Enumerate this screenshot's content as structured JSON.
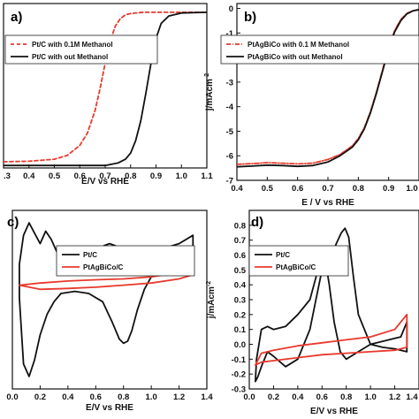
{
  "chart_data": [
    {
      "id": "a",
      "type": "line",
      "panel_label": "a)",
      "xlabel": "E/V vs RHE",
      "ylabel": "",
      "xlim": [
        0.3,
        1.1
      ],
      "ylim": [
        -6.3,
        0.3
      ],
      "xticks": [
        0.3,
        0.4,
        0.5,
        0.6,
        0.7,
        0.8,
        0.9,
        1.0,
        1.1
      ],
      "xtick_labels": [
        ".3",
        "0.4",
        "0.5",
        "0.6",
        "0.7",
        "0.8",
        "0.9",
        "1.0",
        "1.1"
      ],
      "yticks": [],
      "ytick_labels": [],
      "legend_position": "upper-left",
      "series": [
        {
          "name": "Pt/C with 0.1M Methanol",
          "color": "#e8392c",
          "dash": "4,3",
          "x": [
            0.3,
            0.4,
            0.5,
            0.55,
            0.6,
            0.63,
            0.66,
            0.68,
            0.7,
            0.72,
            0.74,
            0.76,
            0.78,
            0.8,
            0.85,
            0.9,
            1.0,
            1.1
          ],
          "y": [
            -6.05,
            -6.03,
            -5.95,
            -5.8,
            -5.4,
            -4.9,
            -4.0,
            -3.1,
            -2.1,
            -1.2,
            -0.6,
            -0.3,
            -0.15,
            -0.1,
            -0.05,
            -0.05,
            -0.05,
            -0.05
          ]
        },
        {
          "name": "Pt/C with out Methanol",
          "color": "#111111",
          "dash": "",
          "x": [
            0.3,
            0.5,
            0.7,
            0.75,
            0.78,
            0.8,
            0.82,
            0.84,
            0.86,
            0.88,
            0.9,
            0.92,
            0.95,
            1.0,
            1.1
          ],
          "y": [
            -6.2,
            -6.2,
            -6.2,
            -6.1,
            -5.95,
            -5.7,
            -5.2,
            -4.4,
            -3.3,
            -2.1,
            -1.1,
            -0.5,
            -0.2,
            -0.08,
            -0.05
          ]
        }
      ]
    },
    {
      "id": "b",
      "type": "line",
      "panel_label": "b)",
      "xlabel": "E / V vs RHE",
      "ylabel": "j/mAcm-2",
      "xlim": [
        0.4,
        1.0
      ],
      "ylim": [
        -7,
        0.2
      ],
      "xticks": [
        0.4,
        0.5,
        0.6,
        0.7,
        0.8,
        0.9,
        1.0
      ],
      "xtick_labels": [
        "0.4",
        "0.5",
        "0.6",
        "0.7",
        "0.8",
        "0.9",
        "1.0"
      ],
      "yticks": [
        0,
        -1,
        -2,
        -3,
        -4,
        -5,
        -6,
        -7
      ],
      "ytick_labels": [
        "0",
        "-1",
        "-2",
        "-3",
        "-4",
        "-5",
        "-6",
        "-7"
      ],
      "legend_position": "upper-left",
      "series": [
        {
          "name": "PtAgBiCo with 0.1 M Methanol",
          "color": "#e8392c",
          "dash": "5,2,1,2",
          "x": [
            0.4,
            0.45,
            0.5,
            0.55,
            0.6,
            0.65,
            0.7,
            0.74,
            0.78,
            0.8,
            0.82,
            0.84,
            0.86,
            0.88,
            0.9,
            0.92,
            0.94,
            0.96,
            0.98,
            1.0
          ],
          "y": [
            -6.35,
            -6.32,
            -6.28,
            -6.3,
            -6.33,
            -6.3,
            -6.15,
            -5.95,
            -5.6,
            -5.3,
            -4.85,
            -4.2,
            -3.4,
            -2.5,
            -1.6,
            -0.9,
            -0.45,
            -0.2,
            -0.1,
            -0.05
          ]
        },
        {
          "name": "PtAgBiCo with out Methanol",
          "color": "#111111",
          "dash": "",
          "x": [
            0.4,
            0.45,
            0.5,
            0.55,
            0.6,
            0.65,
            0.7,
            0.74,
            0.78,
            0.8,
            0.82,
            0.84,
            0.86,
            0.88,
            0.9,
            0.92,
            0.94,
            0.96,
            0.98,
            1.0
          ],
          "y": [
            -6.45,
            -6.42,
            -6.38,
            -6.4,
            -6.43,
            -6.4,
            -6.25,
            -6.0,
            -5.65,
            -5.35,
            -4.9,
            -4.25,
            -3.45,
            -2.55,
            -1.65,
            -0.95,
            -0.5,
            -0.22,
            -0.1,
            -0.05
          ]
        }
      ]
    },
    {
      "id": "c",
      "type": "line",
      "panel_label": "c)",
      "xlabel": "E/V vs RHE",
      "ylabel": "",
      "xlim": [
        0.0,
        1.4
      ],
      "ylim": [
        -0.26,
        0.17
      ],
      "xticks": [
        0.0,
        0.2,
        0.4,
        0.6,
        0.8,
        1.0,
        1.2,
        1.4
      ],
      "xtick_labels": [
        "0.0",
        "0.2",
        "0.4",
        "0.6",
        "0.8",
        "1.0",
        "1.2",
        "1.4"
      ],
      "yticks": [],
      "ytick_labels": [],
      "legend_position": "upper-center",
      "series": [
        {
          "name": "Pt/C",
          "color": "#111111",
          "dash": "",
          "closed": true,
          "x": [
            0.05,
            0.08,
            0.12,
            0.16,
            0.2,
            0.24,
            0.28,
            0.32,
            0.38,
            0.45,
            0.52,
            0.58,
            0.62,
            0.66,
            0.7,
            0.74,
            0.8,
            0.9,
            1.0,
            1.1,
            1.2,
            1.3,
            1.3,
            1.25,
            1.2,
            1.1,
            1.0,
            0.95,
            0.9,
            0.86,
            0.83,
            0.8,
            0.77,
            0.72,
            0.65,
            0.55,
            0.45,
            0.35,
            0.3,
            0.25,
            0.2,
            0.16,
            0.12,
            0.08,
            0.05
          ],
          "y": [
            0.04,
            0.11,
            0.14,
            0.115,
            0.09,
            0.12,
            0.1,
            0.07,
            0.04,
            0.02,
            0.015,
            0.02,
            0.06,
            0.085,
            0.09,
            0.085,
            0.07,
            0.07,
            0.073,
            0.08,
            0.09,
            0.11,
            0.04,
            0.02,
            0.02,
            0.02,
            0.01,
            -0.02,
            -0.07,
            -0.12,
            -0.145,
            -0.15,
            -0.14,
            -0.1,
            -0.05,
            -0.03,
            -0.025,
            -0.03,
            -0.05,
            -0.08,
            -0.13,
            -0.19,
            -0.23,
            -0.2,
            -0.04
          ]
        },
        {
          "name": "PtAgBiCo/C",
          "color": "#e8392c",
          "dash": "",
          "closed": true,
          "x": [
            0.05,
            0.2,
            0.4,
            0.6,
            0.8,
            1.0,
            1.2,
            1.3,
            1.3,
            1.2,
            1.0,
            0.8,
            0.6,
            0.4,
            0.2,
            0.05
          ],
          "y": [
            -0.01,
            -0.005,
            0.0,
            0.003,
            0.005,
            0.01,
            0.02,
            0.035,
            0.015,
            0.005,
            -0.005,
            -0.01,
            -0.015,
            -0.018,
            -0.02,
            -0.01
          ]
        }
      ]
    },
    {
      "id": "d",
      "type": "line",
      "panel_label": "d)",
      "xlabel": "E/V vs RHE",
      "ylabel": "j/mAcm-2",
      "xlim": [
        0.0,
        1.4
      ],
      "ylim": [
        -0.3,
        0.9
      ],
      "xticks": [
        0.0,
        0.2,
        0.4,
        0.6,
        0.8,
        1.0,
        1.2,
        1.4
      ],
      "xtick_labels": [
        "0.0",
        "0.2",
        "0.4",
        "0.6",
        "0.8",
        "1.0",
        "1.2",
        "1.4"
      ],
      "yticks": [
        0.8,
        0.7,
        0.6,
        0.5,
        0.4,
        0.3,
        0.2,
        0.1,
        0.0,
        -0.1,
        -0.2,
        -0.3
      ],
      "ytick_labels": [
        "0.8",
        "0.7",
        "0.6",
        "0.5",
        "0.4",
        "0.3",
        "0.2",
        "0.1",
        "0.0",
        "-0.1",
        "-0.2",
        "-0.3"
      ],
      "legend_position": "upper-left",
      "series": [
        {
          "name": "Pt/C",
          "color": "#111111",
          "dash": "",
          "closed": false,
          "x": [
            0.05,
            0.06,
            0.1,
            0.15,
            0.2,
            0.3,
            0.4,
            0.5,
            0.55,
            0.6,
            0.64,
            0.68,
            0.72,
            0.76,
            0.79,
            0.82,
            0.86,
            0.9,
            1.0,
            1.1,
            1.2,
            1.3,
            1.3,
            1.25,
            1.2,
            1.1,
            1.0,
            0.9,
            0.8,
            0.75,
            0.7,
            0.66,
            0.63,
            0.6,
            0.55,
            0.5,
            0.4,
            0.3,
            0.2,
            0.15,
            0.1,
            0.07,
            0.05
          ],
          "y": [
            -0.25,
            -0.1,
            0.1,
            0.12,
            0.1,
            0.12,
            0.2,
            0.3,
            0.45,
            0.65,
            0.62,
            0.6,
            0.68,
            0.75,
            0.78,
            0.72,
            0.45,
            0.2,
            0.0,
            -0.02,
            -0.03,
            -0.05,
            0.15,
            0.05,
            0.04,
            0.02,
            0.0,
            -0.05,
            -0.1,
            -0.05,
            0.15,
            0.4,
            0.55,
            0.5,
            0.3,
            0.1,
            -0.1,
            -0.15,
            -0.08,
            -0.05,
            -0.15,
            -0.22,
            -0.25
          ]
        },
        {
          "name": "PtAgBiCo/C",
          "color": "#e8392c",
          "dash": "",
          "closed": false,
          "x": [
            0.05,
            0.1,
            0.2,
            0.4,
            0.6,
            0.8,
            1.0,
            1.2,
            1.3,
            1.3,
            1.2,
            1.0,
            0.8,
            0.6,
            0.4,
            0.2,
            0.1,
            0.05
          ],
          "y": [
            -0.14,
            -0.12,
            -0.11,
            -0.09,
            -0.07,
            -0.06,
            -0.05,
            -0.04,
            -0.02,
            0.2,
            0.1,
            0.05,
            0.03,
            0.01,
            -0.01,
            -0.04,
            -0.06,
            -0.14
          ]
        }
      ]
    }
  ]
}
